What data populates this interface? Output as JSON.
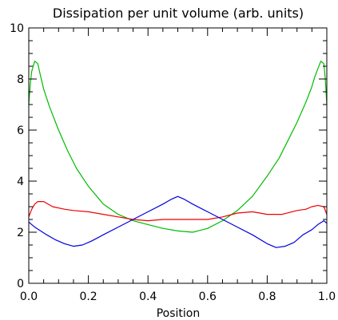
{
  "chart_data": {
    "type": "line",
    "title": "Dissipation per unit volume (arb. units)",
    "xlabel": "Position",
    "ylabel": "",
    "xlim": [
      0.0,
      1.0
    ],
    "ylim": [
      0,
      10
    ],
    "xticks": [
      0.0,
      0.2,
      0.4,
      0.6,
      0.8,
      1.0
    ],
    "xtick_labels": [
      "0.0",
      "0.2",
      "0.4",
      "0.6",
      "0.8",
      "1.0"
    ],
    "yticks": [
      0,
      2,
      4,
      6,
      8,
      10
    ],
    "ytick_labels": [
      "0",
      "2",
      "4",
      "6",
      "8",
      "10"
    ],
    "grid": false,
    "series": [
      {
        "color": "#00bb00",
        "x": [
          0.0,
          0.005,
          0.01,
          0.02,
          0.03,
          0.04,
          0.05,
          0.07,
          0.1,
          0.13,
          0.16,
          0.2,
          0.25,
          0.3,
          0.35,
          0.4,
          0.45,
          0.5,
          0.55,
          0.6,
          0.65,
          0.7,
          0.75,
          0.8,
          0.84,
          0.87,
          0.9,
          0.93,
          0.95,
          0.96,
          0.97,
          0.98,
          0.99,
          0.995,
          1.0
        ],
        "y": [
          7.0,
          7.8,
          8.3,
          8.7,
          8.6,
          8.1,
          7.6,
          6.9,
          6.0,
          5.2,
          4.5,
          3.8,
          3.1,
          2.7,
          2.45,
          2.3,
          2.15,
          2.05,
          2.0,
          2.15,
          2.45,
          2.85,
          3.4,
          4.2,
          4.9,
          5.6,
          6.3,
          7.1,
          7.7,
          8.1,
          8.4,
          8.7,
          8.6,
          8.0,
          7.0
        ]
      },
      {
        "color": "#ee0000",
        "x": [
          0.0,
          0.01,
          0.02,
          0.03,
          0.05,
          0.08,
          0.12,
          0.15,
          0.2,
          0.25,
          0.3,
          0.35,
          0.4,
          0.45,
          0.5,
          0.55,
          0.6,
          0.65,
          0.7,
          0.75,
          0.8,
          0.85,
          0.9,
          0.93,
          0.95,
          0.97,
          0.99,
          1.0
        ],
        "y": [
          2.6,
          2.9,
          3.1,
          3.2,
          3.2,
          3.0,
          2.9,
          2.85,
          2.8,
          2.7,
          2.6,
          2.5,
          2.45,
          2.5,
          2.5,
          2.5,
          2.5,
          2.6,
          2.75,
          2.8,
          2.7,
          2.7,
          2.85,
          2.9,
          3.0,
          3.05,
          3.0,
          2.7
        ]
      },
      {
        "color": "#0000dd",
        "x": [
          0.0,
          0.01,
          0.02,
          0.04,
          0.06,
          0.09,
          0.12,
          0.15,
          0.18,
          0.21,
          0.25,
          0.3,
          0.35,
          0.4,
          0.45,
          0.48,
          0.5,
          0.52,
          0.55,
          0.6,
          0.65,
          0.7,
          0.75,
          0.8,
          0.83,
          0.86,
          0.89,
          0.92,
          0.95,
          0.97,
          0.99,
          1.0
        ],
        "y": [
          2.4,
          2.3,
          2.2,
          2.05,
          1.9,
          1.7,
          1.55,
          1.45,
          1.5,
          1.65,
          1.9,
          2.2,
          2.5,
          2.8,
          3.1,
          3.3,
          3.4,
          3.3,
          3.1,
          2.8,
          2.5,
          2.2,
          1.9,
          1.55,
          1.4,
          1.45,
          1.6,
          1.9,
          2.1,
          2.3,
          2.45,
          2.35
        ]
      }
    ]
  }
}
